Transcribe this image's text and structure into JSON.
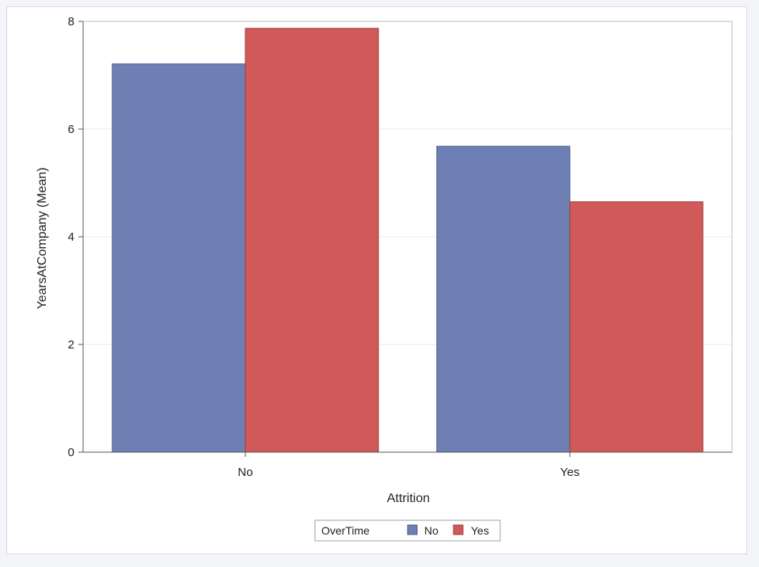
{
  "chart_data": {
    "type": "bar",
    "title": "",
    "xlabel": "Attrition",
    "ylabel": "YearsAtCompany (Mean)",
    "categories": [
      "No",
      "Yes"
    ],
    "series": [
      {
        "name": "No",
        "values": [
          7.21,
          5.68
        ],
        "color": "#6e7fb4"
      },
      {
        "name": "Yes",
        "values": [
          7.87,
          4.65
        ],
        "color": "#d05a5a"
      }
    ],
    "ylim": [
      0,
      8
    ],
    "yticks": [
      0,
      2,
      4,
      6,
      8
    ],
    "grid": true,
    "legend": {
      "title": "OverTime",
      "placement": "bottom-center",
      "entries": [
        "No",
        "Yes"
      ]
    }
  }
}
